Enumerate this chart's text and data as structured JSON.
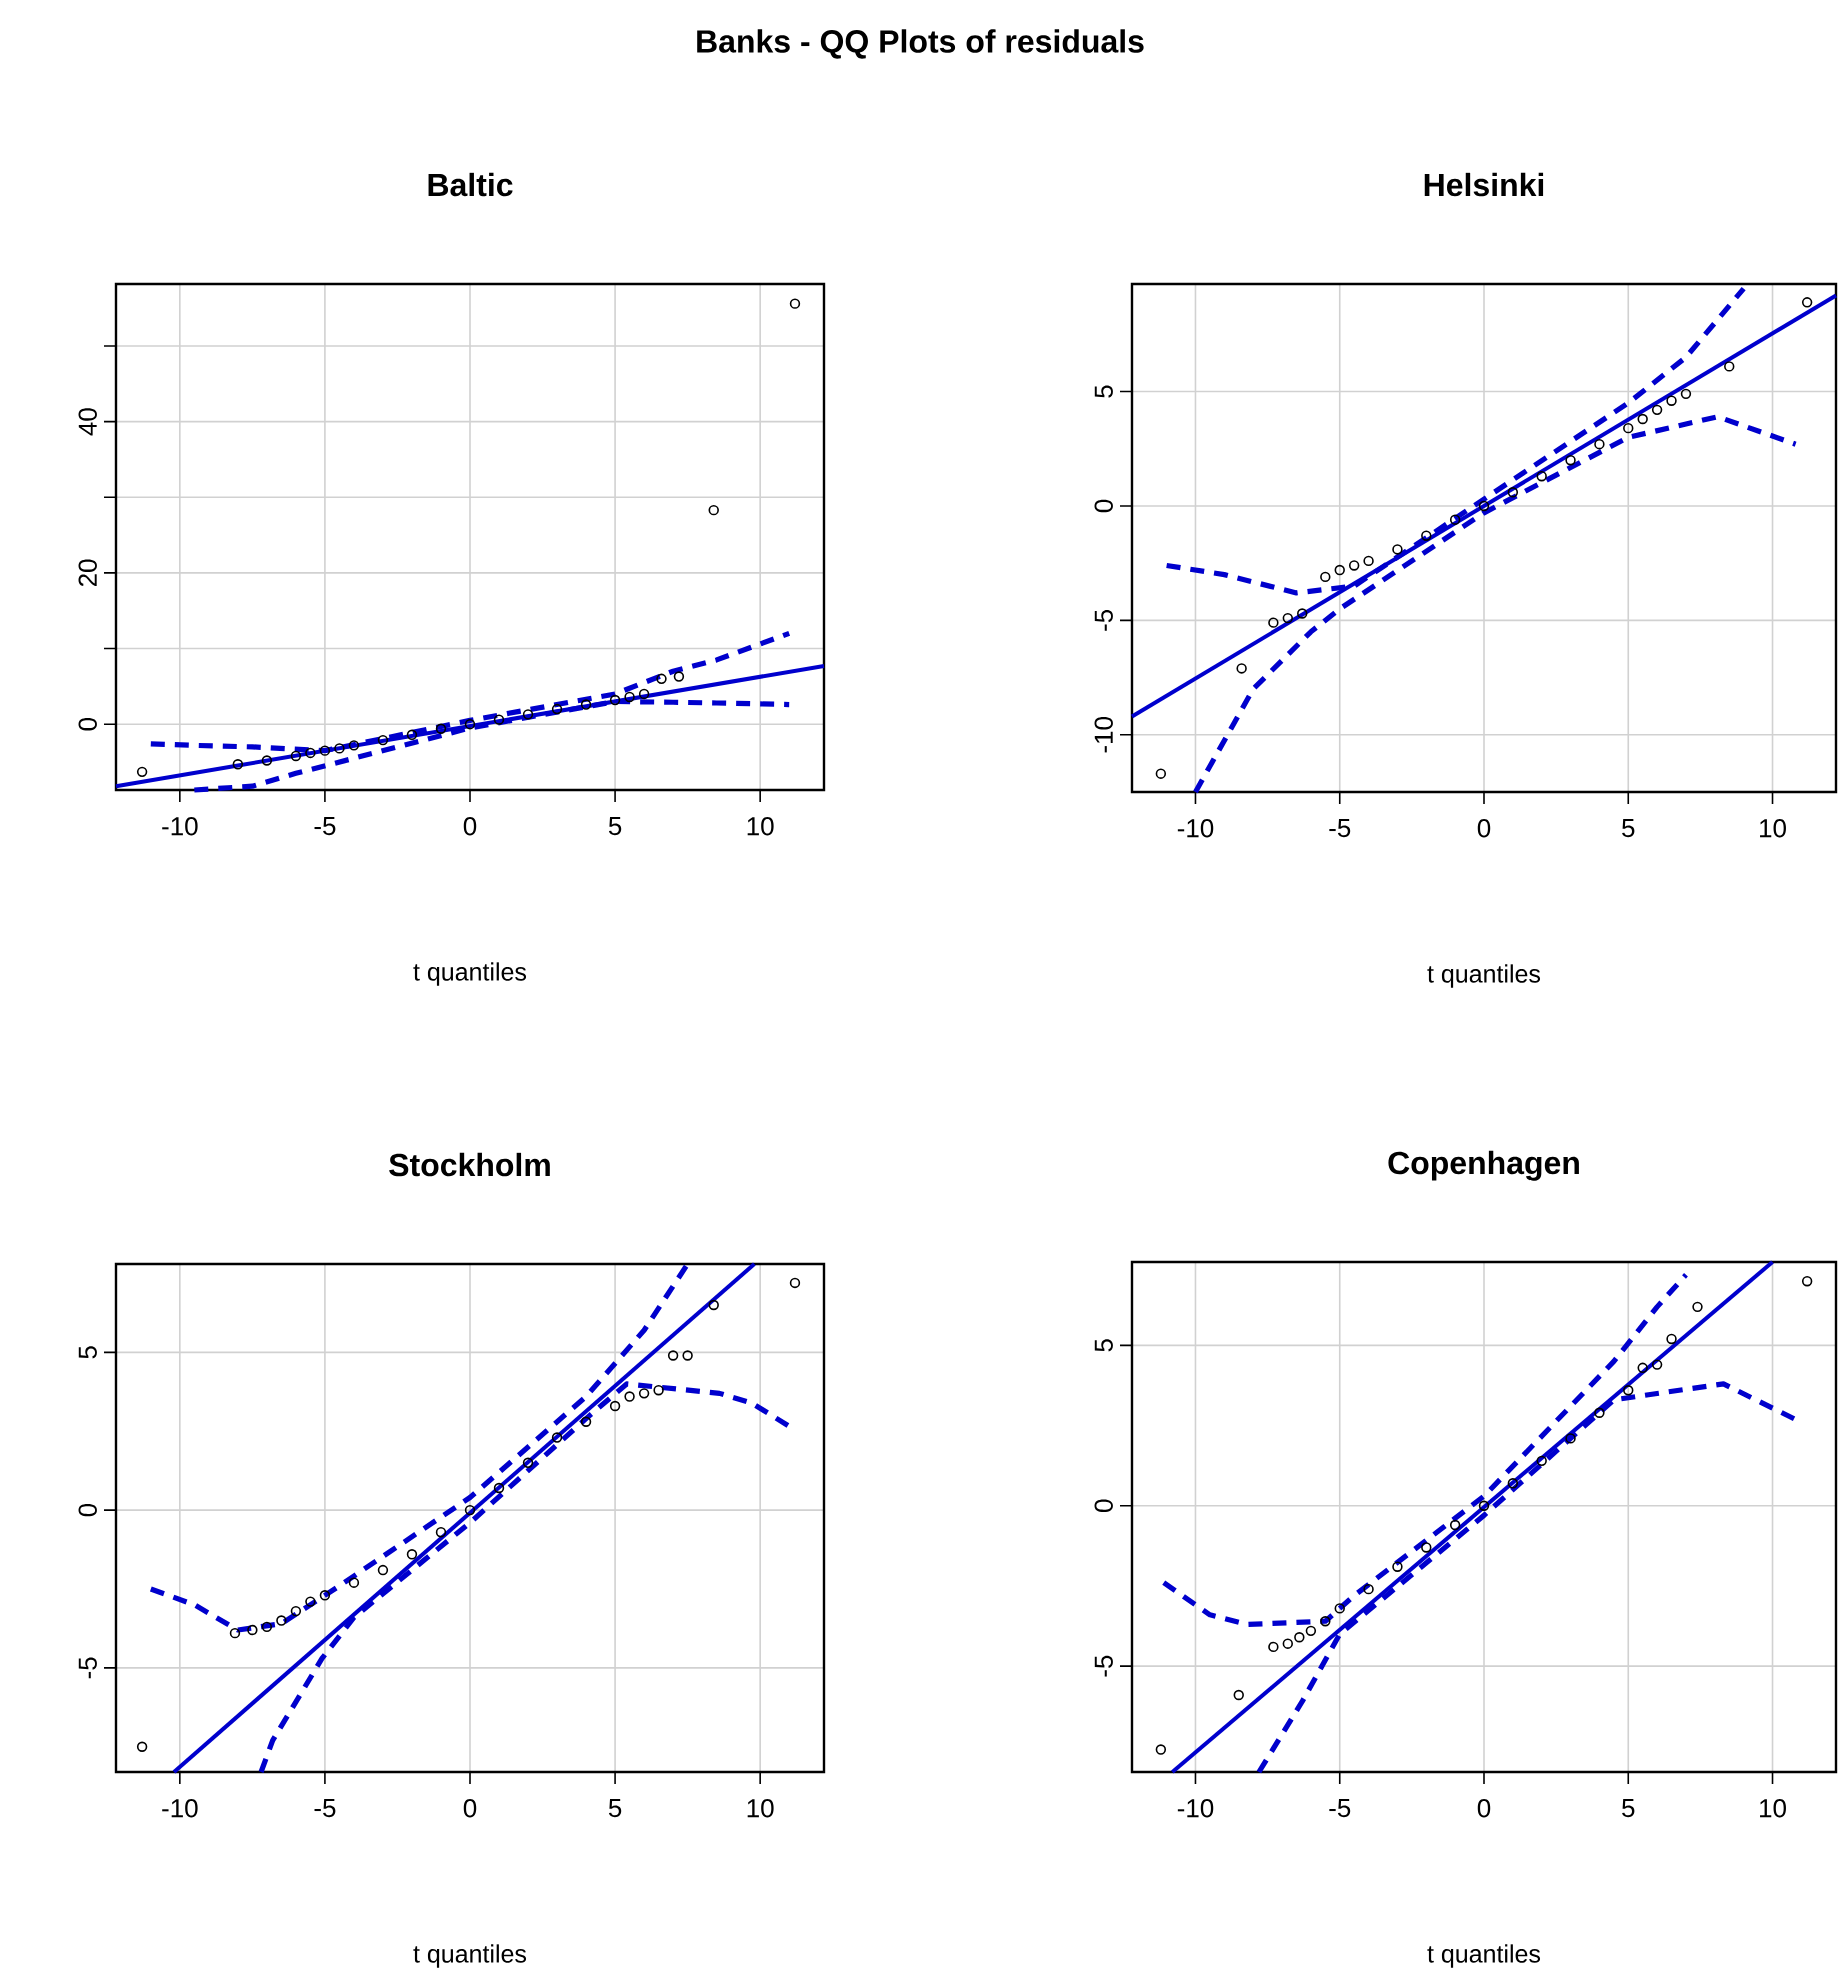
{
  "chart_data": [
    {
      "type": "scatter",
      "title": "Baltic",
      "xlabel": "t quantiles",
      "annotations": [
        "Banks - QQ Plots of residuals"
      ],
      "xlim": [
        -12.2,
        12.2
      ],
      "ylim": [
        -8.7,
        58.2
      ],
      "xticks": [
        -10,
        -5,
        0,
        5,
        10
      ],
      "yticks": [
        0,
        {
          "value": 10,
          "label": null
        },
        20,
        {
          "value": 30,
          "label": null
        },
        40,
        {
          "value": 50,
          "label": null
        }
      ],
      "grid": true,
      "series": [
        {
          "type": "scatter",
          "marker": "circle",
          "color": "#000000",
          "x": [
            -11.3,
            -8.0,
            -7.0,
            -6.0,
            -5.5,
            -5.0,
            -4.5,
            -4.0,
            -3.0,
            -2.0,
            -1.0,
            0.0,
            1.0,
            2.0,
            3.0,
            4.0,
            5.0,
            5.5,
            6.0,
            6.6,
            7.2,
            8.4,
            11.2
          ],
          "values": [
            -6.3,
            -5.3,
            -4.8,
            -4.2,
            -3.8,
            -3.5,
            -3.2,
            -2.8,
            -2.1,
            -1.4,
            -0.6,
            0.0,
            0.6,
            1.3,
            2.0,
            2.6,
            3.2,
            3.6,
            4.0,
            6.0,
            6.3,
            28.3,
            55.6
          ]
        },
        {
          "type": "line",
          "line_style": "solid",
          "color": "#0000cd",
          "x": [
            -12.2,
            12.2
          ],
          "values": [
            -8.2,
            7.7
          ]
        },
        {
          "type": "line",
          "line_style": "dashed",
          "color": "#0000cd",
          "x": [
            -11.0,
            -9.5,
            -7.5,
            -5.0,
            0.0,
            5.0,
            7.0,
            8.5,
            11.0
          ],
          "values": [
            -2.6,
            -2.8,
            -3.0,
            -3.5,
            0.5,
            4.0,
            7.0,
            8.5,
            12.0
          ]
        },
        {
          "type": "line",
          "line_style": "dashed",
          "color": "#0000cd",
          "x": [
            -9.5,
            -7.5,
            -6.0,
            0.0,
            5.0,
            7.0,
            8.5,
            11.0
          ],
          "values": [
            -8.7,
            -8.2,
            -6.5,
            -0.5,
            3.0,
            2.9,
            2.8,
            2.6
          ]
        }
      ]
    },
    {
      "type": "scatter",
      "title": "Helsinki",
      "xlabel": "t quantiles",
      "xlim": [
        -12.2,
        12.2
      ],
      "ylim": [
        -12.5,
        9.7
      ],
      "xticks": [
        -10,
        -5,
        0,
        5,
        10
      ],
      "yticks": [
        -10,
        -5,
        0,
        5
      ],
      "grid": true,
      "series": [
        {
          "type": "scatter",
          "marker": "circle",
          "color": "#000000",
          "x": [
            -11.2,
            -8.4,
            -7.3,
            -6.8,
            -6.3,
            -5.5,
            -5.0,
            -4.5,
            -4.0,
            -3.0,
            -2.0,
            -1.0,
            0.0,
            1.0,
            2.0,
            3.0,
            4.0,
            5.0,
            5.5,
            6.0,
            6.5,
            7.0,
            8.5,
            11.2
          ],
          "values": [
            -11.7,
            -7.1,
            -5.1,
            -4.9,
            -4.7,
            -3.1,
            -2.8,
            -2.6,
            -2.4,
            -1.9,
            -1.3,
            -0.6,
            0.0,
            0.6,
            1.3,
            2.0,
            2.7,
            3.4,
            3.8,
            4.2,
            4.6,
            4.9,
            6.1,
            8.9
          ]
        },
        {
          "type": "line",
          "line_style": "solid",
          "color": "#0000cd",
          "x": [
            -12.2,
            12.2
          ],
          "values": [
            -9.2,
            9.2
          ]
        },
        {
          "type": "line",
          "line_style": "dashed",
          "color": "#0000cd",
          "x": [
            -11.0,
            -9.0,
            -6.5,
            -4.5,
            0.0,
            5.0,
            7.0,
            9.0
          ],
          "values": [
            -2.6,
            -3.0,
            -3.8,
            -3.5,
            0.3,
            4.5,
            6.5,
            9.5
          ]
        },
        {
          "type": "line",
          "line_style": "dashed",
          "color": "#0000cd",
          "x": [
            -10.0,
            -8.0,
            -6.0,
            -5.0,
            0.0,
            5.0,
            8.1,
            10.8
          ],
          "values": [
            -12.5,
            -8.0,
            -5.5,
            -4.5,
            -0.3,
            3.0,
            3.9,
            2.7
          ]
        }
      ]
    },
    {
      "type": "scatter",
      "title": "Stockholm",
      "xlabel": "t quantiles",
      "xlim": [
        -12.2,
        12.2
      ],
      "ylim": [
        -8.3,
        7.8
      ],
      "xticks": [
        -10,
        -5,
        0,
        5,
        10
      ],
      "yticks": [
        -5,
        0,
        5
      ],
      "grid": true,
      "series": [
        {
          "type": "scatter",
          "marker": "circle",
          "color": "#000000",
          "x": [
            -11.3,
            -8.1,
            -7.5,
            -7.0,
            -6.5,
            -6.0,
            -5.5,
            -5.0,
            -4.0,
            -3.0,
            -2.0,
            -1.0,
            0.0,
            1.0,
            2.0,
            3.0,
            4.0,
            5.0,
            5.5,
            6.0,
            6.5,
            7.0,
            7.5,
            8.4,
            11.2
          ],
          "values": [
            -7.5,
            -3.9,
            -3.8,
            -3.7,
            -3.5,
            -3.2,
            -2.9,
            -2.7,
            -2.3,
            -1.9,
            -1.4,
            -0.7,
            0.0,
            0.7,
            1.5,
            2.3,
            2.8,
            3.3,
            3.6,
            3.7,
            3.8,
            4.9,
            4.9,
            6.5,
            7.2
          ]
        },
        {
          "type": "line",
          "line_style": "solid",
          "color": "#0000cd",
          "x": [
            -10.2,
            9.8
          ],
          "values": [
            -8.3,
            7.8
          ]
        },
        {
          "type": "line",
          "line_style": "dashed",
          "color": "#0000cd",
          "x": [
            -11.0,
            -9.5,
            -8.0,
            -6.5,
            -4.5,
            0.0,
            4.0,
            6.0,
            7.5
          ],
          "values": [
            -2.5,
            -3.0,
            -3.8,
            -3.6,
            -2.4,
            0.4,
            3.6,
            5.7,
            7.8
          ]
        },
        {
          "type": "line",
          "line_style": "dashed",
          "color": "#0000cd",
          "x": [
            -7.2,
            -6.8,
            -5.1,
            -4.0,
            0.0,
            4.0,
            5.4,
            8.6,
            9.7,
            11.1
          ],
          "values": [
            -8.3,
            -7.3,
            -4.7,
            -3.4,
            -0.4,
            2.9,
            4.0,
            3.7,
            3.4,
            2.6
          ]
        }
      ]
    },
    {
      "type": "scatter",
      "title": "Copenhagen",
      "xlabel": "t quantiles",
      "xlim": [
        -12.2,
        12.2
      ],
      "ylim": [
        -8.3,
        7.6
      ],
      "xticks": [
        -10,
        -5,
        0,
        5,
        10
      ],
      "yticks": [
        -5,
        0,
        5
      ],
      "grid": true,
      "series": [
        {
          "type": "scatter",
          "marker": "circle",
          "color": "#000000",
          "x": [
            -11.2,
            -8.5,
            -7.3,
            -6.8,
            -6.4,
            -6.0,
            -5.5,
            -5.0,
            -4.0,
            -3.0,
            -2.0,
            -1.0,
            0.0,
            1.0,
            2.0,
            3.0,
            4.0,
            5.0,
            5.5,
            6.0,
            6.5,
            7.4,
            11.2
          ],
          "values": [
            -7.6,
            -5.9,
            -4.4,
            -4.3,
            -4.1,
            -3.9,
            -3.6,
            -3.2,
            -2.6,
            -1.9,
            -1.3,
            -0.6,
            0.0,
            0.7,
            1.4,
            2.1,
            2.9,
            3.6,
            4.3,
            4.4,
            5.2,
            6.2,
            7.0
          ]
        },
        {
          "type": "line",
          "line_style": "solid",
          "color": "#0000cd",
          "x": [
            -10.8,
            10.0
          ],
          "values": [
            -8.3,
            7.6
          ]
        },
        {
          "type": "line",
          "line_style": "dashed",
          "color": "#0000cd",
          "x": [
            -11.1,
            -9.5,
            -8.2,
            -5.5,
            -4.5,
            0.0,
            4.5,
            6.0,
            7.0
          ],
          "values": [
            -2.4,
            -3.4,
            -3.7,
            -3.6,
            -2.8,
            0.3,
            4.5,
            6.2,
            7.2
          ]
        },
        {
          "type": "line",
          "line_style": "dashed",
          "color": "#0000cd",
          "x": [
            -7.8,
            -6.3,
            -5.0,
            0.0,
            4.5,
            6.0,
            8.3,
            11.0
          ],
          "values": [
            -8.3,
            -6.1,
            -4.0,
            -0.3,
            3.3,
            3.5,
            3.8,
            2.6
          ]
        }
      ]
    }
  ]
}
